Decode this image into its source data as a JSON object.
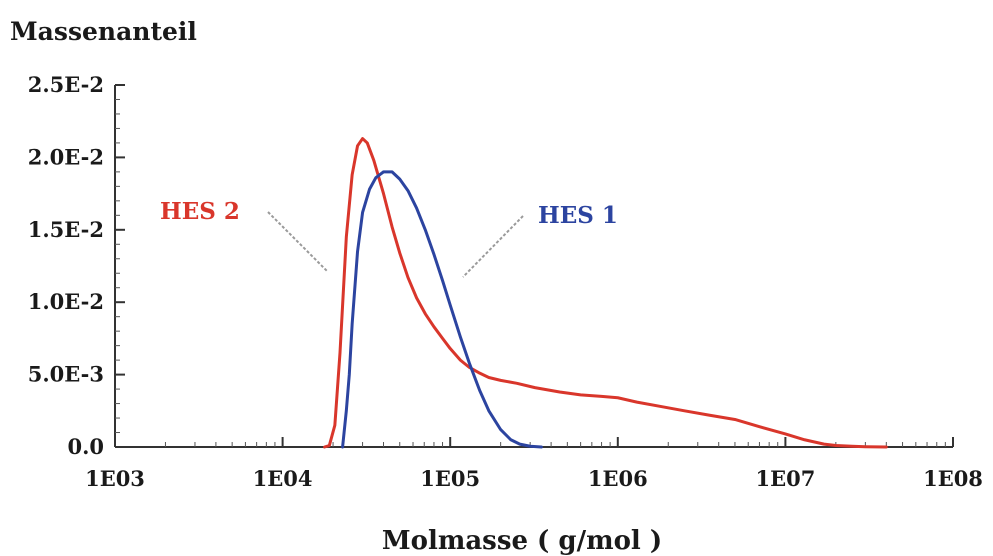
{
  "chart_data": {
    "type": "line",
    "ylabel": "Massenanteil",
    "xlabel": "Molmasse ( g/mol )",
    "x_scale": "log",
    "xlim": [
      1000,
      100000000
    ],
    "ylim": [
      0,
      0.025
    ],
    "x_ticks": [
      1000,
      10000,
      100000,
      1000000,
      10000000,
      100000000
    ],
    "x_tick_labels": [
      "1E03",
      "1E04",
      "1E05",
      "1E06",
      "1E07",
      "1E08"
    ],
    "y_ticks": [
      0,
      0.005,
      0.01,
      0.015,
      0.02,
      0.025
    ],
    "y_tick_labels": [
      "0.0",
      "5.0E-3",
      "1.0E-2",
      "1.5E-2",
      "2.0E-2",
      "2.5E-2"
    ],
    "grid": false,
    "series": [
      {
        "name": "HES 2",
        "color": "#d9362b",
        "x": [
          17800,
          19000,
          20500,
          22000,
          24000,
          26000,
          28000,
          30000,
          32000,
          35000,
          40000,
          45000,
          50000,
          56000,
          63000,
          71000,
          80000,
          90000,
          100000,
          115000,
          130000,
          150000,
          170000,
          200000,
          250000,
          320000,
          450000,
          600000,
          800000,
          1000000,
          1300000,
          1800000,
          2500000,
          3500000,
          5000000,
          7000000,
          10000000,
          13000000,
          17000000,
          20000000,
          25000000,
          30000000,
          40000000
        ],
        "y": [
          0,
          0.0001,
          0.0015,
          0.0065,
          0.0145,
          0.0188,
          0.0208,
          0.0213,
          0.021,
          0.0198,
          0.0175,
          0.0152,
          0.0134,
          0.0117,
          0.0103,
          0.0092,
          0.0083,
          0.0075,
          0.0068,
          0.006,
          0.0055,
          0.0051,
          0.0048,
          0.0046,
          0.0044,
          0.0041,
          0.0038,
          0.0036,
          0.0035,
          0.0034,
          0.0031,
          0.0028,
          0.0025,
          0.0022,
          0.0019,
          0.0014,
          0.0009,
          0.0005,
          0.0002,
          0.0001,
          5e-05,
          2e-05,
          0
        ]
      },
      {
        "name": "HES 1",
        "color": "#2c44a0",
        "x": [
          22800,
          24000,
          25000,
          26000,
          28000,
          30000,
          33000,
          36000,
          40000,
          45000,
          50000,
          56000,
          63000,
          71000,
          80000,
          90000,
          100000,
          115000,
          130000,
          150000,
          170000,
          200000,
          230000,
          260000,
          300000,
          350000
        ],
        "y": [
          0,
          0.0025,
          0.005,
          0.0085,
          0.0135,
          0.0162,
          0.0178,
          0.0186,
          0.019,
          0.019,
          0.0185,
          0.0177,
          0.0165,
          0.015,
          0.0133,
          0.0115,
          0.0098,
          0.0076,
          0.0058,
          0.0039,
          0.0025,
          0.0012,
          0.0005,
          0.0002,
          5e-05,
          0
        ]
      }
    ]
  }
}
